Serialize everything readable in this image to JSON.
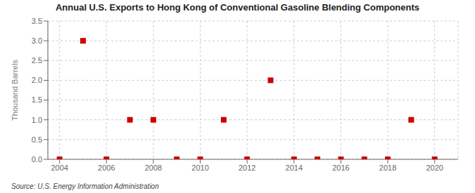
{
  "chart_data": {
    "type": "scatter",
    "title": "Annual U.S. Exports to Hong Kong of Conventional Gasoline Blending Components",
    "ylabel": "Thousand Barrels",
    "source": "Source: U.S. Energy Information Administration",
    "x": [
      2004,
      2005,
      2006,
      2007,
      2008,
      2009,
      2010,
      2011,
      2012,
      2013,
      2014,
      2015,
      2016,
      2017,
      2018,
      2019,
      2020
    ],
    "values": [
      0.0,
      3.0,
      0.0,
      1.0,
      1.0,
      0.0,
      0.0,
      1.0,
      0.0,
      2.0,
      0.0,
      0.0,
      0.0,
      0.0,
      0.0,
      1.0,
      0.0
    ],
    "color": "#cc0000",
    "marker": "square",
    "xlim": [
      2003.5,
      2021.0
    ],
    "ylim": [
      0.0,
      3.5
    ],
    "xticks": [
      2004,
      2006,
      2008,
      2010,
      2012,
      2014,
      2016,
      2018,
      2020
    ],
    "yticks": [
      {
        "value": 0.0,
        "label": "0.0"
      },
      0.5,
      {
        "value": 1.0,
        "label": "1.0"
      },
      1.5,
      {
        "value": 2.0,
        "label": "2.0"
      },
      2.5,
      {
        "value": 3.0,
        "label": "3.0"
      },
      3.5
    ],
    "grid": true
  }
}
